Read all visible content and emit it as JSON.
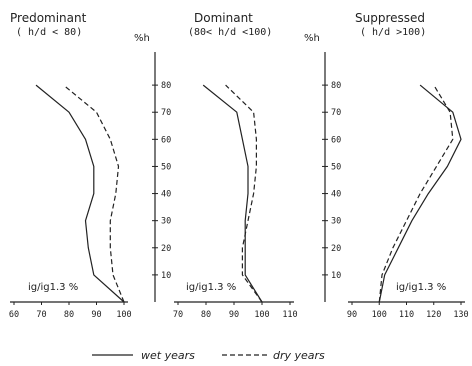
{
  "chart_data": [
    {
      "type": "line",
      "title": "Predominant",
      "subtitle": "( h/d < 80)",
      "inner_label": "ig/ig1.3 %",
      "ylabel": "",
      "xlim": [
        60,
        100
      ],
      "x_ticks": [
        "60",
        "70",
        "80",
        "90",
        "100"
      ],
      "ylim": [
        0,
        90
      ],
      "series": [
        {
          "name": "wet years",
          "style": "solid",
          "points": [
            [
              100,
              0
            ],
            [
              89,
              10
            ],
            [
              87,
              20
            ],
            [
              86,
              30
            ],
            [
              89,
              40
            ],
            [
              89,
              50
            ],
            [
              86,
              60
            ],
            [
              80,
              70
            ],
            [
              68,
              80
            ]
          ]
        },
        {
          "name": "dry years",
          "style": "dashed",
          "points": [
            [
              100,
              0
            ],
            [
              96,
              10
            ],
            [
              95,
              20
            ],
            [
              95,
              30
            ],
            [
              97,
              40
            ],
            [
              98,
              50
            ],
            [
              95,
              60
            ],
            [
              90,
              70
            ],
            [
              78,
              80
            ]
          ]
        }
      ]
    },
    {
      "type": "line",
      "title": "Dominant",
      "subtitle": "(80< h/d <100)",
      "inner_label": "ig/ig1.3 %",
      "ylabel": "%h",
      "xlim": [
        70,
        110
      ],
      "x_ticks": [
        "70",
        "80",
        "90",
        "100",
        "110"
      ],
      "y_ticks": [
        "10",
        "20",
        "30",
        "40",
        "50",
        "60",
        "70",
        "80"
      ],
      "ylim": [
        0,
        90
      ],
      "series": [
        {
          "name": "wet years",
          "style": "solid",
          "points": [
            [
              100,
              0
            ],
            [
              94,
              10
            ],
            [
              94,
              20
            ],
            [
              94,
              30
            ],
            [
              95,
              40
            ],
            [
              95,
              50
            ],
            [
              93,
              60
            ],
            [
              91,
              70
            ],
            [
              79,
              80
            ]
          ]
        },
        {
          "name": "dry years",
          "style": "dashed",
          "points": [
            [
              100,
              0
            ],
            [
              93,
              10
            ],
            [
              93,
              20
            ],
            [
              95,
              30
            ],
            [
              97,
              40
            ],
            [
              98,
              50
            ],
            [
              98,
              60
            ],
            [
              97,
              70
            ],
            [
              87,
              80
            ]
          ]
        }
      ]
    },
    {
      "type": "line",
      "title": "Suppressed",
      "subtitle": "( h/d >100)",
      "inner_label": "ig/ig1.3 %",
      "ylabel": "%h",
      "xlim": [
        90,
        130
      ],
      "x_ticks": [
        "90",
        "100",
        "110",
        "120",
        "130"
      ],
      "y_ticks": [
        "10",
        "20",
        "30",
        "40",
        "50",
        "60",
        "70",
        "80"
      ],
      "ylim": [
        0,
        90
      ],
      "series": [
        {
          "name": "wet years",
          "style": "solid",
          "points": [
            [
              100,
              0
            ],
            [
              102,
              10
            ],
            [
              107,
              20
            ],
            [
              112,
              30
            ],
            [
              118,
              40
            ],
            [
              125,
              50
            ],
            [
              130,
              60
            ],
            [
              127,
              70
            ],
            [
              115,
              80
            ]
          ]
        },
        {
          "name": "dry years",
          "style": "dashed",
          "points": [
            [
              100,
              0
            ],
            [
              101,
              10
            ],
            [
              105,
              20
            ],
            [
              110,
              30
            ],
            [
              115,
              40
            ],
            [
              121,
              50
            ],
            [
              127,
              60
            ],
            [
              126,
              70
            ],
            [
              120,
              80
            ]
          ]
        }
      ]
    }
  ],
  "legend": {
    "items": [
      {
        "label": "wet years",
        "style": "solid"
      },
      {
        "label": "dry years",
        "style": "dashed"
      }
    ],
    "position": "bottom"
  }
}
